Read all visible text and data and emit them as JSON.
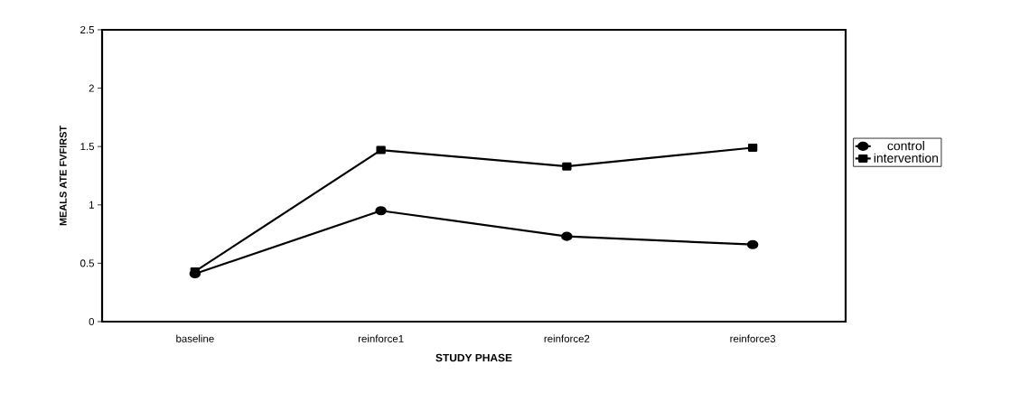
{
  "chart_data": {
    "type": "line",
    "xlabel": "STUDY PHASE",
    "ylabel": "MEALS ATE FVFIRST",
    "categories": [
      "baseline",
      "reinforce1",
      "reinforce2",
      "reinforce3"
    ],
    "series": [
      {
        "name": "control",
        "color": "#000000",
        "marker": "circle",
        "values": [
          0.41,
          0.95,
          0.73,
          0.66
        ]
      },
      {
        "name": "intervention",
        "color": "#000000",
        "marker": "square",
        "values": [
          0.43,
          1.47,
          1.33,
          1.49
        ]
      }
    ],
    "ylim": [
      0,
      2.5
    ],
    "yticks": [
      0,
      0.5,
      1,
      1.5,
      2,
      2.5
    ],
    "grid": false,
    "legend": "right",
    "line_style": "solid"
  }
}
